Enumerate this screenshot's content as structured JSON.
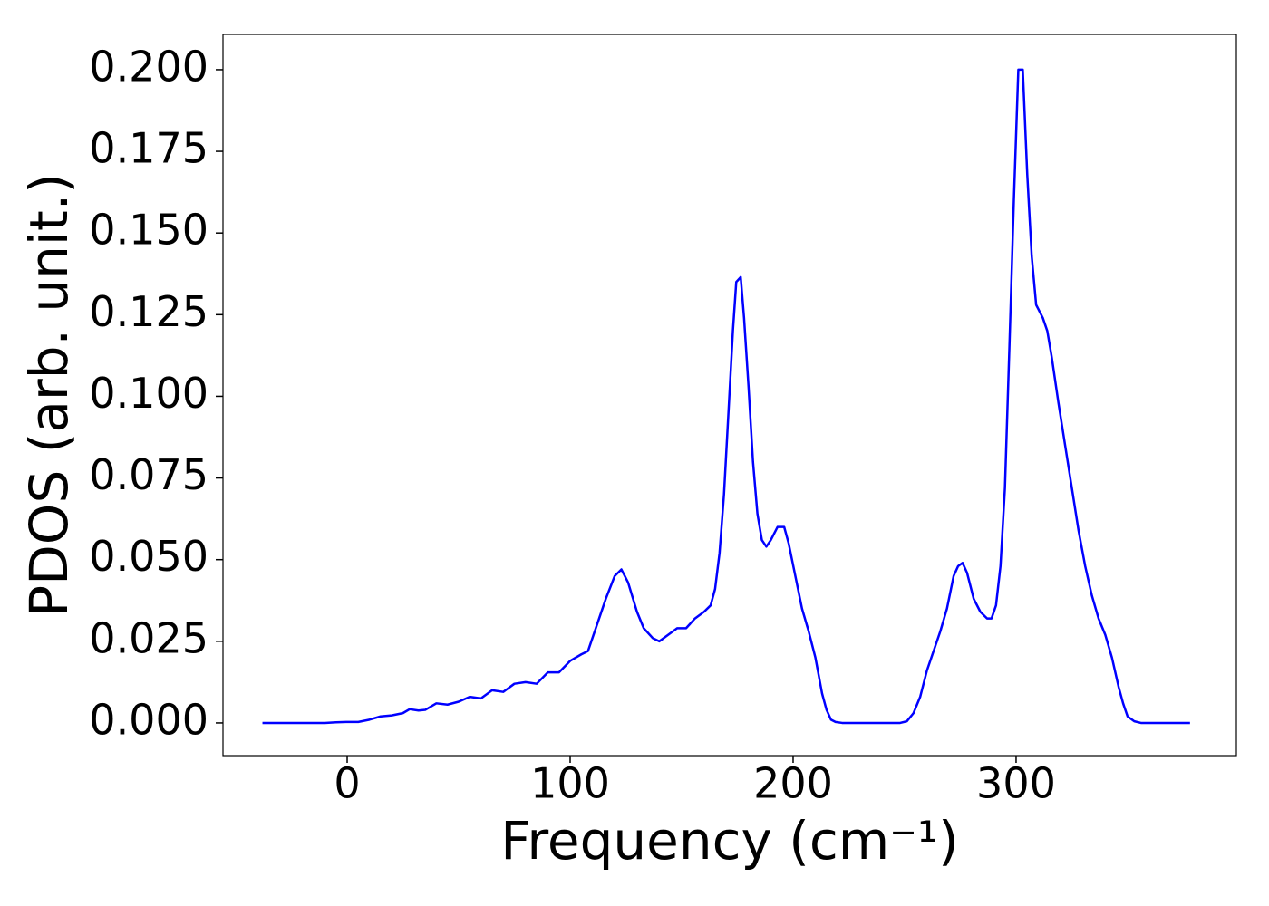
{
  "chart_data": {
    "type": "line",
    "xlabel": "Frequency (cm⁻¹)",
    "ylabel": "PDOS (arb. unit.)",
    "x": [
      -38,
      -10,
      -5,
      0,
      5,
      10,
      15,
      20,
      25,
      28,
      32,
      35,
      40,
      45,
      50,
      55,
      60,
      65,
      70,
      75,
      80,
      85,
      90,
      95,
      100,
      105,
      108,
      112,
      116,
      120,
      123,
      126,
      130,
      133,
      137,
      140,
      144,
      148,
      152,
      156,
      160,
      163,
      165,
      167,
      169,
      171,
      173,
      174.5,
      176.5,
      178,
      180,
      182,
      184,
      186,
      188,
      190,
      193,
      196,
      198,
      201,
      204,
      207,
      210,
      213,
      215,
      217,
      219,
      222,
      248,
      251,
      254,
      257,
      260,
      263,
      266,
      269,
      272,
      274,
      276,
      278,
      281,
      284,
      287,
      289,
      291,
      293,
      295,
      297,
      299,
      301,
      303,
      305,
      307,
      309,
      312,
      314,
      316,
      319,
      322,
      325,
      328,
      331,
      334,
      337,
      340,
      343,
      346,
      348,
      350,
      353,
      356,
      378
    ],
    "series": [
      {
        "name": "PDOS",
        "color": "#0000ff",
        "values": [
          0,
          0,
          0.0002,
          0.0003,
          0.0003,
          0.001,
          0.002,
          0.0023,
          0.003,
          0.0042,
          0.0038,
          0.004,
          0.006,
          0.0056,
          0.0065,
          0.008,
          0.0075,
          0.01,
          0.0095,
          0.012,
          0.0125,
          0.012,
          0.0155,
          0.0155,
          0.019,
          0.021,
          0.022,
          0.03,
          0.038,
          0.045,
          0.047,
          0.043,
          0.034,
          0.029,
          0.026,
          0.025,
          0.027,
          0.029,
          0.029,
          0.032,
          0.034,
          0.036,
          0.041,
          0.052,
          0.07,
          0.095,
          0.12,
          0.135,
          0.1365,
          0.124,
          0.103,
          0.08,
          0.064,
          0.056,
          0.054,
          0.056,
          0.06,
          0.06,
          0.055,
          0.045,
          0.035,
          0.028,
          0.02,
          0.009,
          0.004,
          0.001,
          0.0003,
          0,
          0,
          0.0005,
          0.003,
          0.008,
          0.016,
          0.022,
          0.028,
          0.035,
          0.045,
          0.048,
          0.049,
          0.046,
          0.038,
          0.034,
          0.032,
          0.032,
          0.036,
          0.048,
          0.072,
          0.115,
          0.16,
          0.2,
          0.2,
          0.168,
          0.143,
          0.128,
          0.124,
          0.12,
          0.112,
          0.098,
          0.085,
          0.072,
          0.059,
          0.048,
          0.039,
          0.032,
          0.027,
          0.02,
          0.011,
          0.006,
          0.002,
          0.0005,
          0,
          0
        ]
      }
    ],
    "xlim": [
      -55.7,
      398.8
    ],
    "ylim": [
      -0.01,
      0.2108
    ],
    "xticks": [
      0,
      100,
      200,
      300
    ],
    "yticks": [
      {
        "value": 0,
        "label": "0.000"
      },
      {
        "value": 0.025,
        "label": "0.025"
      },
      {
        "value": 0.05,
        "label": "0.050"
      },
      {
        "value": 0.075,
        "label": "0.075"
      },
      {
        "value": 0.1,
        "label": "0.100"
      },
      {
        "value": 0.125,
        "label": "0.125"
      },
      {
        "value": 0.15,
        "label": "0.150"
      },
      {
        "value": 0.175,
        "label": "0.175"
      },
      {
        "value": 0.2,
        "label": "0.200"
      }
    ],
    "grid": false
  }
}
